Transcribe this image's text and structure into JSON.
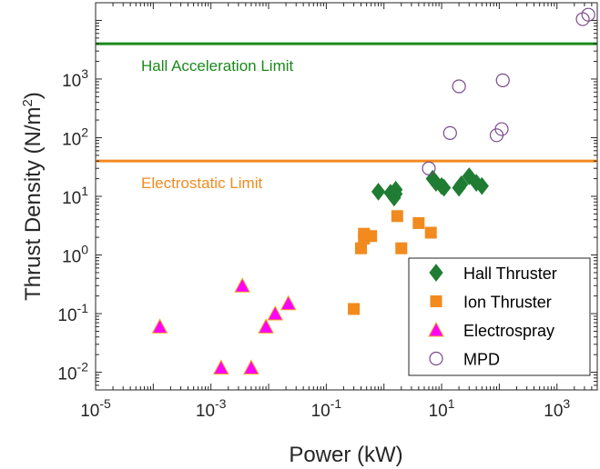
{
  "chart_data": {
    "type": "scatter",
    "title": "",
    "xlabel": "Power (kW)",
    "ylabel_main": "Thrust Density (N/m",
    "ylabel_sup": "2",
    "ylabel_close": ")",
    "xscale": "log",
    "yscale": "log",
    "xlim": [
      1e-05,
      5000
    ],
    "ylim": [
      0.005,
      20000
    ],
    "grid": false,
    "legend_position": "bottom-right",
    "x_ticks": [
      {
        "value": 1e-05,
        "base": "10",
        "exp": "-5"
      },
      {
        "value": 0.001,
        "base": "10",
        "exp": "-3"
      },
      {
        "value": 0.1,
        "base": "10",
        "exp": "-1"
      },
      {
        "value": 10,
        "base": "10",
        "exp": "1"
      },
      {
        "value": 1000,
        "base": "10",
        "exp": "3"
      }
    ],
    "y_ticks": [
      {
        "value": 0.01,
        "base": "10",
        "exp": "-2"
      },
      {
        "value": 0.1,
        "base": "10",
        "exp": "-1"
      },
      {
        "value": 1,
        "base": "10",
        "exp": "0"
      },
      {
        "value": 10,
        "base": "10",
        "exp": "1"
      },
      {
        "value": 100,
        "base": "10",
        "exp": "2"
      },
      {
        "value": 1000,
        "base": "10",
        "exp": "3"
      }
    ],
    "reference_lines": [
      {
        "label": "Hall Acceleration Limit",
        "y": 4000,
        "color": "#1a8a1a"
      },
      {
        "label": "Electrostatic Limit",
        "y": 40,
        "color": "#f28a1e"
      }
    ],
    "series": [
      {
        "name": "Hall Thruster",
        "marker": "diamond",
        "color": "#1e7d32",
        "x": [
          0.8,
          1.3,
          1.5,
          1.6,
          1.6,
          7,
          8,
          10,
          11,
          20,
          22,
          30,
          40,
          50
        ],
        "y": [
          12,
          11.5,
          9.5,
          11,
          13,
          20,
          17,
          15,
          14,
          14,
          16,
          22,
          17,
          15
        ]
      },
      {
        "name": "Ion Thruster",
        "marker": "square",
        "color": "#f28a1e",
        "x": [
          0.3,
          0.4,
          0.45,
          0.45,
          0.6,
          1.7,
          2,
          4,
          6.5
        ],
        "y": [
          0.12,
          1.3,
          1.9,
          2.3,
          2.1,
          4.6,
          1.3,
          3.5,
          2.4
        ]
      },
      {
        "name": "Electrospray",
        "marker": "triangle",
        "color": "#ff00ff",
        "x": [
          0.00013,
          0.0015,
          0.0035,
          0.005,
          0.009,
          0.013,
          0.022
        ],
        "y": [
          0.06,
          0.012,
          0.3,
          0.012,
          0.06,
          0.1,
          0.15
        ]
      },
      {
        "name": "MPD",
        "marker": "circle-open",
        "color": "#7b4a8c",
        "x": [
          6,
          14,
          20,
          90,
          110,
          115,
          2800,
          3500
        ],
        "y": [
          30,
          120,
          750,
          110,
          140,
          950,
          10500,
          12500
        ]
      }
    ]
  }
}
